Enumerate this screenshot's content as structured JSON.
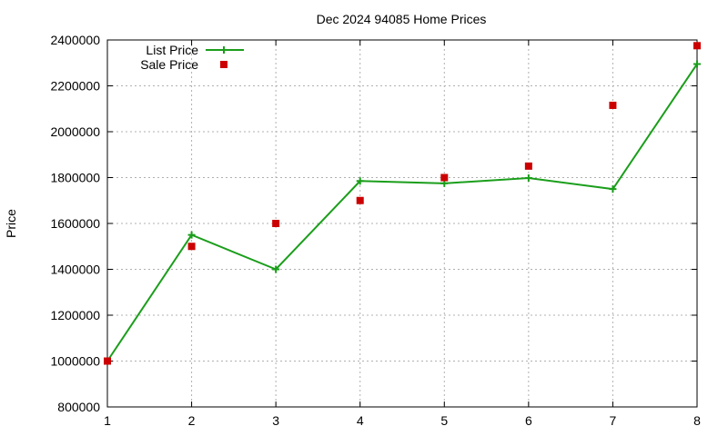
{
  "chart_data": {
    "type": "line",
    "title": "Dec 2024 94085 Home Prices",
    "xlabel": "",
    "ylabel": "Price",
    "x": [
      1,
      2,
      3,
      4,
      5,
      6,
      7,
      8
    ],
    "xlim": [
      1,
      8
    ],
    "ylim": [
      800000,
      2400000
    ],
    "xticks": [
      "1",
      "2",
      "3",
      "4",
      "5",
      "6",
      "7",
      "8"
    ],
    "yticks": [
      "800000",
      "1000000",
      "1200000",
      "1400000",
      "1600000",
      "1800000",
      "2000000",
      "2200000",
      "2400000"
    ],
    "grid": true,
    "legend_position": "top-left",
    "series": [
      {
        "name": "List Price",
        "style": "line-with-plus-markers",
        "color": "#1a9e1a",
        "values": [
          1000000,
          1550000,
          1400000,
          1785000,
          1775000,
          1798000,
          1750000,
          2295000
        ]
      },
      {
        "name": "Sale Price",
        "style": "square-markers",
        "color": "#cc0000",
        "values": [
          1000000,
          1500000,
          1600000,
          1700000,
          1800000,
          1850000,
          2115000,
          2375000
        ]
      }
    ]
  }
}
